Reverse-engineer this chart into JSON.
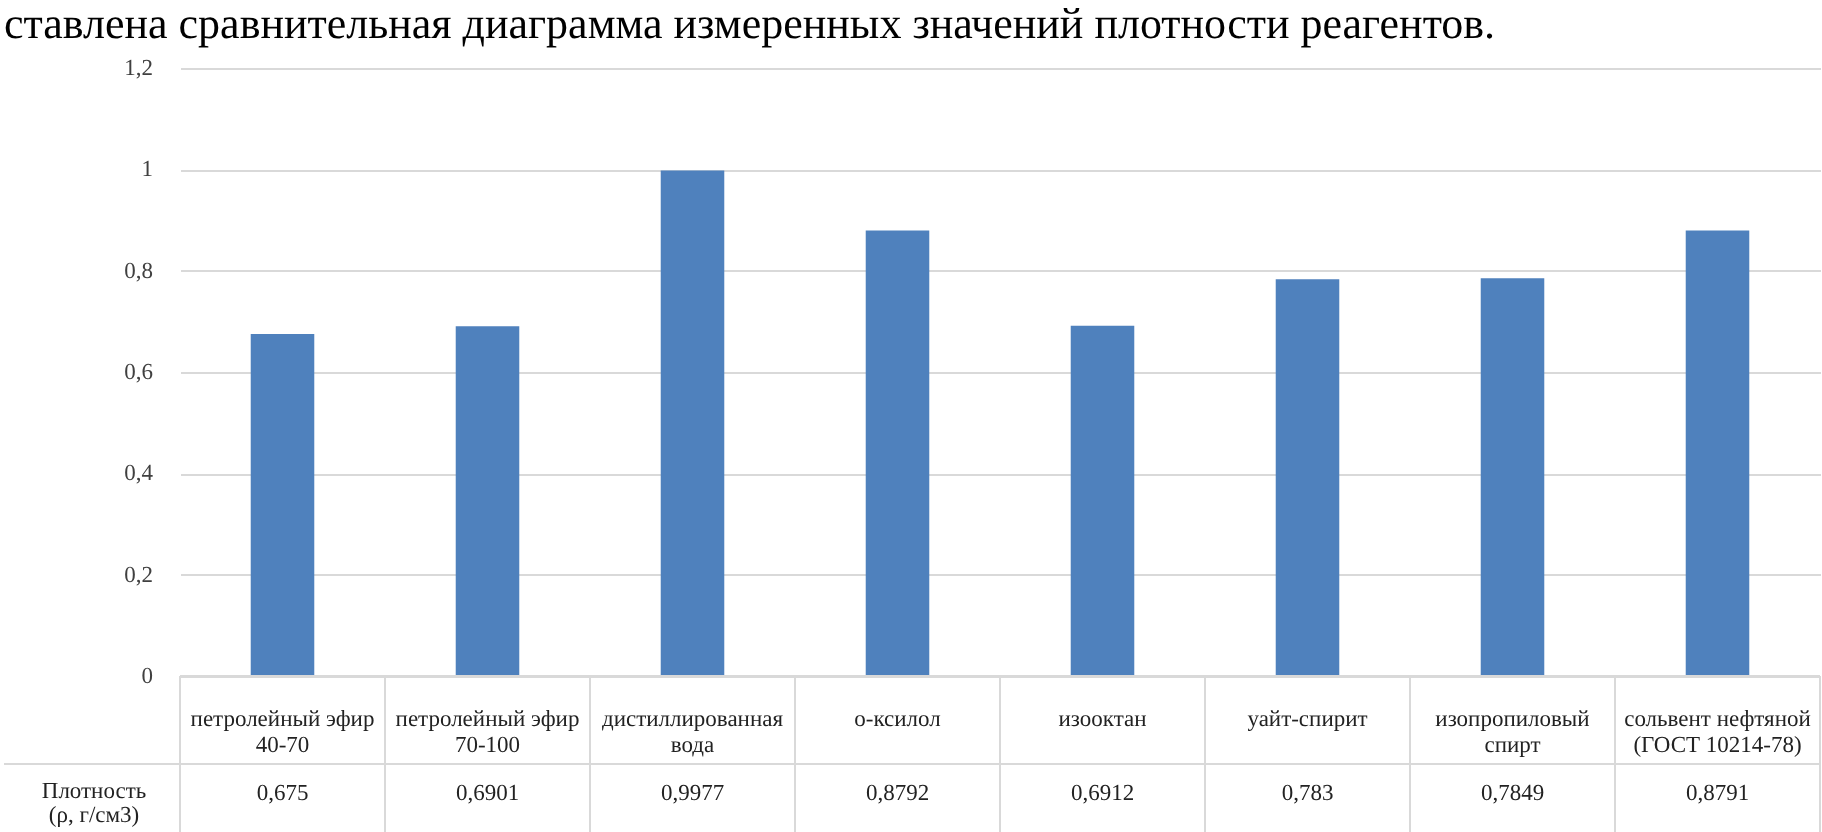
{
  "chart_data": {
    "type": "bar",
    "title": "ставлена сравнительная диаграмма измеренных значений плотности реагентов.",
    "categories": [
      "петролейный эфир 40-70",
      "петролейный эфир 70-100",
      "дистиллированная вода",
      "о-ксилол",
      "изооктан",
      "уайт-спирит",
      "изопропиловый спирт",
      "сольвент нефтяной (ГОСТ 10214-78)"
    ],
    "series": [
      {
        "name": "Плотность (ρ, г/см3)",
        "color": "#4f81bd",
        "values": [
          0.675,
          0.6901,
          0.9977,
          0.8792,
          0.6912,
          0.783,
          0.7849,
          0.8791
        ],
        "value_labels": [
          "0,675",
          "0,6901",
          "0,9977",
          "0,8792",
          "0,6912",
          "0,783",
          "0,7849",
          "0,8791"
        ]
      }
    ],
    "ylim": [
      0,
      1.2
    ],
    "yticks": [
      0,
      {
        "value": 0.2,
        "label": "0,2"
      },
      {
        "value": 0.4,
        "label": "0,4"
      },
      {
        "value": 0.6,
        "label": "0,6"
      },
      {
        "value": 0.8,
        "label": "0,8"
      },
      1,
      {
        "value": 1.2,
        "label": "1,2"
      }
    ],
    "grid": "y"
  }
}
